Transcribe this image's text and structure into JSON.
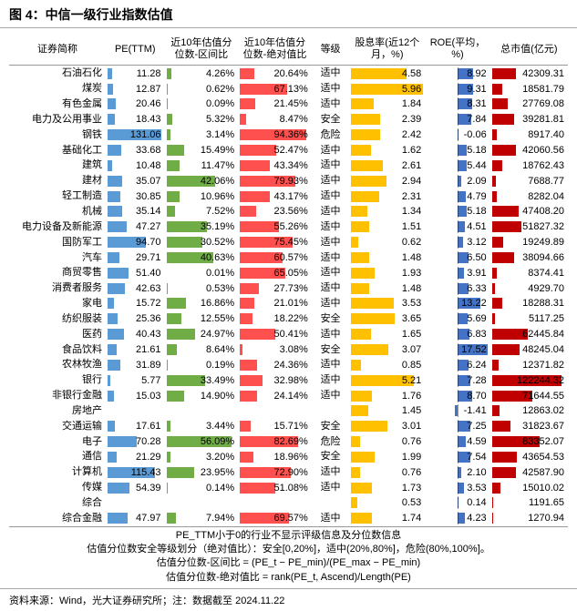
{
  "title": "图 4：中信一级行业指数估值",
  "columns": {
    "name": "证券简称",
    "pe": "PE(TTM)",
    "qj": "近10年估值分位数-区间比",
    "jd": "近10年估值分位数-绝对值比",
    "lvl": "等级",
    "div": "股息率(近12个月，%)",
    "roe": "ROE(平均，%)",
    "mkt": "总市值(亿元)"
  },
  "colors": {
    "pe_bar": "#5b9bd5",
    "qj_bar": "#70ad47",
    "jd_bar": "#ff5050",
    "div_bar": "#ffc000",
    "roe_bar": "#4472c4",
    "mkt_bar": "#c00000",
    "grid": "#999999"
  },
  "scales": {
    "pe_max": 135,
    "qj_max": 60,
    "jd_max": 100,
    "div_max": 6,
    "roe_abs": 18,
    "mkt_max": 130000
  },
  "footnotes": [
    "PE_TTM小于0的行业不显示评级信息及分位数信息",
    "估值分位数安全等级划分（绝对值比）：安全[0,20%]，适中(20%,80%]，危险(80%,100%]。",
    "估值分位数-区间比 =  (PE_t − PE_min)/(PE_max − PE_min)",
    "估值分位数-绝对值比 =  rank(PE_t, Ascend)/Length(PE)"
  ],
  "source": "资料来源：Wind，光大证券研究所；注：数据截至 2024.11.22",
  "rows": [
    {
      "name": "石油石化",
      "pe": 11.28,
      "qj": 4.26,
      "jd": 20.64,
      "lvl": "适中",
      "div": 4.58,
      "roe": 8.92,
      "mkt": 42309.31
    },
    {
      "name": "煤炭",
      "pe": 12.87,
      "qj": 0.62,
      "jd": 67.13,
      "lvl": "适中",
      "div": 5.96,
      "roe": 9.31,
      "mkt": 18581.79
    },
    {
      "name": "有色金属",
      "pe": 20.46,
      "qj": 0.09,
      "jd": 21.45,
      "lvl": "适中",
      "div": 1.84,
      "roe": 8.31,
      "mkt": 27769.08
    },
    {
      "name": "电力及公用事业",
      "pe": 18.43,
      "qj": 5.32,
      "jd": 8.47,
      "lvl": "安全",
      "div": 2.39,
      "roe": 7.84,
      "mkt": 39281.81
    },
    {
      "name": "钢铁",
      "pe": 131.06,
      "qj": 3.14,
      "jd": 94.36,
      "lvl": "危险",
      "div": 2.42,
      "roe": -0.06,
      "mkt": 8917.4
    },
    {
      "name": "基础化工",
      "pe": 33.68,
      "qj": 15.49,
      "jd": 52.47,
      "lvl": "适中",
      "div": 1.62,
      "roe": 5.18,
      "mkt": 42060.56
    },
    {
      "name": "建筑",
      "pe": 10.48,
      "qj": 11.47,
      "jd": 43.34,
      "lvl": "适中",
      "div": 2.61,
      "roe": 5.44,
      "mkt": 18762.43
    },
    {
      "name": "建材",
      "pe": 35.07,
      "qj": 42.06,
      "jd": 79.93,
      "lvl": "适中",
      "div": 2.94,
      "roe": 2.09,
      "mkt": 7688.77
    },
    {
      "name": "轻工制造",
      "pe": 30.85,
      "qj": 10.96,
      "jd": 43.17,
      "lvl": "适中",
      "div": 2.31,
      "roe": 4.79,
      "mkt": 8282.04
    },
    {
      "name": "机械",
      "pe": 35.14,
      "qj": 7.52,
      "jd": 23.56,
      "lvl": "适中",
      "div": 1.34,
      "roe": 5.18,
      "mkt": 47408.2
    },
    {
      "name": "电力设备及新能源",
      "pe": 47.27,
      "qj": 35.19,
      "jd": 55.26,
      "lvl": "适中",
      "div": 1.51,
      "roe": 4.51,
      "mkt": 51827.32
    },
    {
      "name": "国防军工",
      "pe": 94.7,
      "qj": 30.52,
      "jd": 75.45,
      "lvl": "适中",
      "div": 0.62,
      "roe": 3.12,
      "mkt": 19249.89
    },
    {
      "name": "汽车",
      "pe": 29.71,
      "qj": 40.63,
      "jd": 60.57,
      "lvl": "适中",
      "div": 1.48,
      "roe": 6.5,
      "mkt": 38094.66
    },
    {
      "name": "商贸零售",
      "pe": 51.4,
      "qj": 0.01,
      "jd": 65.05,
      "lvl": "适中",
      "div": 1.93,
      "roe": 3.91,
      "mkt": 8374.41
    },
    {
      "name": "消费者服务",
      "pe": 42.63,
      "qj": 0.53,
      "jd": 27.73,
      "lvl": "适中",
      "div": 1.48,
      "roe": 6.33,
      "mkt": 4929.7
    },
    {
      "name": "家电",
      "pe": 15.72,
      "qj": 16.86,
      "jd": 21.01,
      "lvl": "适中",
      "div": 3.53,
      "roe": 13.22,
      "mkt": 18288.31
    },
    {
      "name": "纺织服装",
      "pe": 25.36,
      "qj": 12.55,
      "jd": 18.22,
      "lvl": "安全",
      "div": 3.65,
      "roe": 5.69,
      "mkt": 5117.25
    },
    {
      "name": "医药",
      "pe": 40.43,
      "qj": 24.97,
      "jd": 50.41,
      "lvl": "适中",
      "div": 1.65,
      "roe": 6.83,
      "mkt": 62445.84
    },
    {
      "name": "食品饮料",
      "pe": 21.61,
      "qj": 8.64,
      "jd": 3.08,
      "lvl": "安全",
      "div": 3.07,
      "roe": 17.52,
      "mkt": 48245.04
    },
    {
      "name": "农林牧渔",
      "pe": 31.89,
      "qj": 0.19,
      "jd": 24.36,
      "lvl": "适中",
      "div": 0.85,
      "roe": 6.24,
      "mkt": 12371.82
    },
    {
      "name": "银行",
      "pe": 5.77,
      "qj": 33.49,
      "jd": 32.98,
      "lvl": "适中",
      "div": 5.21,
      "roe": 7.28,
      "mkt": 122244.32
    },
    {
      "name": "非银行金融",
      "pe": 15.03,
      "qj": 14.9,
      "jd": 24.14,
      "lvl": "适中",
      "div": 1.76,
      "roe": 8.7,
      "mkt": 71644.55
    },
    {
      "name": "房地产",
      "pe": null,
      "qj": null,
      "jd": null,
      "lvl": "",
      "div": 1.45,
      "roe": -1.41,
      "mkt": 12863.02
    },
    {
      "name": "交通运输",
      "pe": 17.61,
      "qj": 3.44,
      "jd": 15.71,
      "lvl": "安全",
      "div": 3.01,
      "roe": 7.25,
      "mkt": 31823.67
    },
    {
      "name": "电子",
      "pe": 70.28,
      "qj": 56.09,
      "jd": 82.69,
      "lvl": "危险",
      "div": 0.76,
      "roe": 4.59,
      "mkt": 83352.07
    },
    {
      "name": "通信",
      "pe": 21.29,
      "qj": 3.2,
      "jd": 18.96,
      "lvl": "安全",
      "div": 1.99,
      "roe": 7.54,
      "mkt": 43654.53
    },
    {
      "name": "计算机",
      "pe": 115.43,
      "qj": 23.95,
      "jd": 72.9,
      "lvl": "适中",
      "div": 0.76,
      "roe": 2.1,
      "mkt": 42587.9
    },
    {
      "name": "传媒",
      "pe": 54.39,
      "qj": 0.14,
      "jd": 51.08,
      "lvl": "适中",
      "div": 1.73,
      "roe": 3.53,
      "mkt": 15010.02
    },
    {
      "name": "综合",
      "pe": null,
      "qj": null,
      "jd": null,
      "lvl": "",
      "div": 0.53,
      "roe": 0.14,
      "mkt": 1191.65
    },
    {
      "name": "综合金融",
      "pe": 47.97,
      "qj": 7.94,
      "jd": 69.57,
      "lvl": "适中",
      "div": 1.74,
      "roe": 4.23,
      "mkt": 1270.94
    }
  ]
}
